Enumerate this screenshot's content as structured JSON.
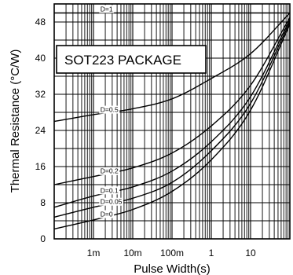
{
  "chart_data": {
    "type": "line",
    "xlabel": "Pulse Width(s)",
    "ylabel": "Thermal Resistance (°C/W)",
    "x_scale": "log",
    "xlim": [
      0.0001,
      100
    ],
    "ylim": [
      0,
      52
    ],
    "grid": true,
    "x_tick_labels": [
      {
        "value": 0.001,
        "label": "1m"
      },
      {
        "value": 0.01,
        "label": "10m"
      },
      {
        "value": 0.1,
        "label": "100m"
      },
      {
        "value": 1,
        "label": "1"
      },
      {
        "value": 10,
        "label": "10"
      }
    ],
    "y_ticks": [
      0,
      8,
      16,
      24,
      32,
      40,
      48
    ],
    "annotation": "SOT223 PACKAGE",
    "series": [
      {
        "name": "D=1",
        "x": [
          0.0001,
          100
        ],
        "y": [
          50,
          50
        ]
      },
      {
        "name": "D=0.5",
        "x": [
          0.0001,
          0.001,
          0.01,
          0.1,
          1,
          10,
          100
        ],
        "y": [
          26,
          27.5,
          28.8,
          31,
          35.5,
          41,
          50
        ]
      },
      {
        "name": "D=0.2",
        "x": [
          0.0001,
          0.001,
          0.01,
          0.1,
          1,
          10,
          100
        ],
        "y": [
          12,
          13.8,
          15.7,
          19,
          25,
          34,
          49
        ]
      },
      {
        "name": "D=0.1",
        "x": [
          0.0001,
          0.001,
          0.01,
          0.1,
          1,
          10,
          100
        ],
        "y": [
          7,
          9.5,
          11.5,
          15,
          21.5,
          31.5,
          48.5
        ]
      },
      {
        "name": "D=0.05",
        "x": [
          0.0001,
          0.001,
          0.01,
          0.1,
          1,
          10,
          100
        ],
        "y": [
          4.8,
          7,
          9,
          12.5,
          19.5,
          30,
          48
        ]
      },
      {
        "name": "D=0",
        "x": [
          0.0001,
          0.001,
          0.01,
          0.1,
          1,
          10,
          100
        ],
        "y": [
          2.2,
          4.2,
          6.5,
          10.5,
          17.5,
          28.5,
          47.5
        ]
      }
    ]
  }
}
